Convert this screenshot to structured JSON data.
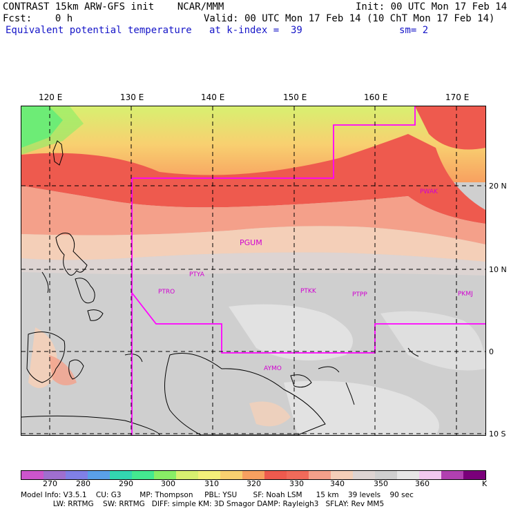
{
  "header": {
    "line1_left": "CONTRAST 15km ARW-GFS init    NCAR/MMM",
    "line1_right": "Init: 00 UTC Mon 17 Feb 14",
    "line2_left": "Fcst:    0 h",
    "line2_right": "Valid: 00 UTC Mon 17 Feb 14 (10 ChT Mon 17 Feb 14)",
    "line3_left": "Equivalent potential temperature",
    "line3_mid": "at k-index =  39",
    "line3_right": "sm= 2"
  },
  "lon_labels": [
    "120 E",
    "130 E",
    "140 E",
    "150 E",
    "160 E",
    "170 E"
  ],
  "lat_labels": [
    "20 N",
    "10 N",
    "0",
    "10 S"
  ],
  "stations": [
    {
      "name": "PWAK",
      "big": false
    },
    {
      "name": "PGUM",
      "big": true
    },
    {
      "name": "PTYA",
      "big": false
    },
    {
      "name": "PTRO",
      "big": false
    },
    {
      "name": "PTKK",
      "big": false
    },
    {
      "name": "PTPP",
      "big": false
    },
    {
      "name": "PKMJ",
      "big": false
    },
    {
      "name": "AYMO",
      "big": false
    }
  ],
  "colorbar": {
    "colors": [
      "#cc55cc",
      "#9f6fcf",
      "#8080e6",
      "#5aa0e8",
      "#33d6b0",
      "#44e890",
      "#88ee66",
      "#d8f070",
      "#f4f07a",
      "#f8d070",
      "#f8a060",
      "#ee5a4e",
      "#f06a5a",
      "#f4a08a",
      "#f4cfb8",
      "#ddd4d2",
      "#cfcfcf",
      "#e6e6e6",
      "#f2c8f0",
      "#b040b0",
      "#7a007a"
    ],
    "labels": [
      "270",
      "280",
      "290",
      "300",
      "310",
      "320",
      "330",
      "340",
      "350",
      "360",
      "K"
    ]
  },
  "footer": {
    "line1": "Model Info: V3.5.1    CU: G3        MP: Thompson     PBL: YSU       SF: Noah LSM      15 km    39 levels    90 sec",
    "line2": "              LW: RRTMG    SW: RRTMG   DIFF: simple KM: 3D Smagor DAMP: Rayleigh3   SFLAY: Rev MM5"
  }
}
